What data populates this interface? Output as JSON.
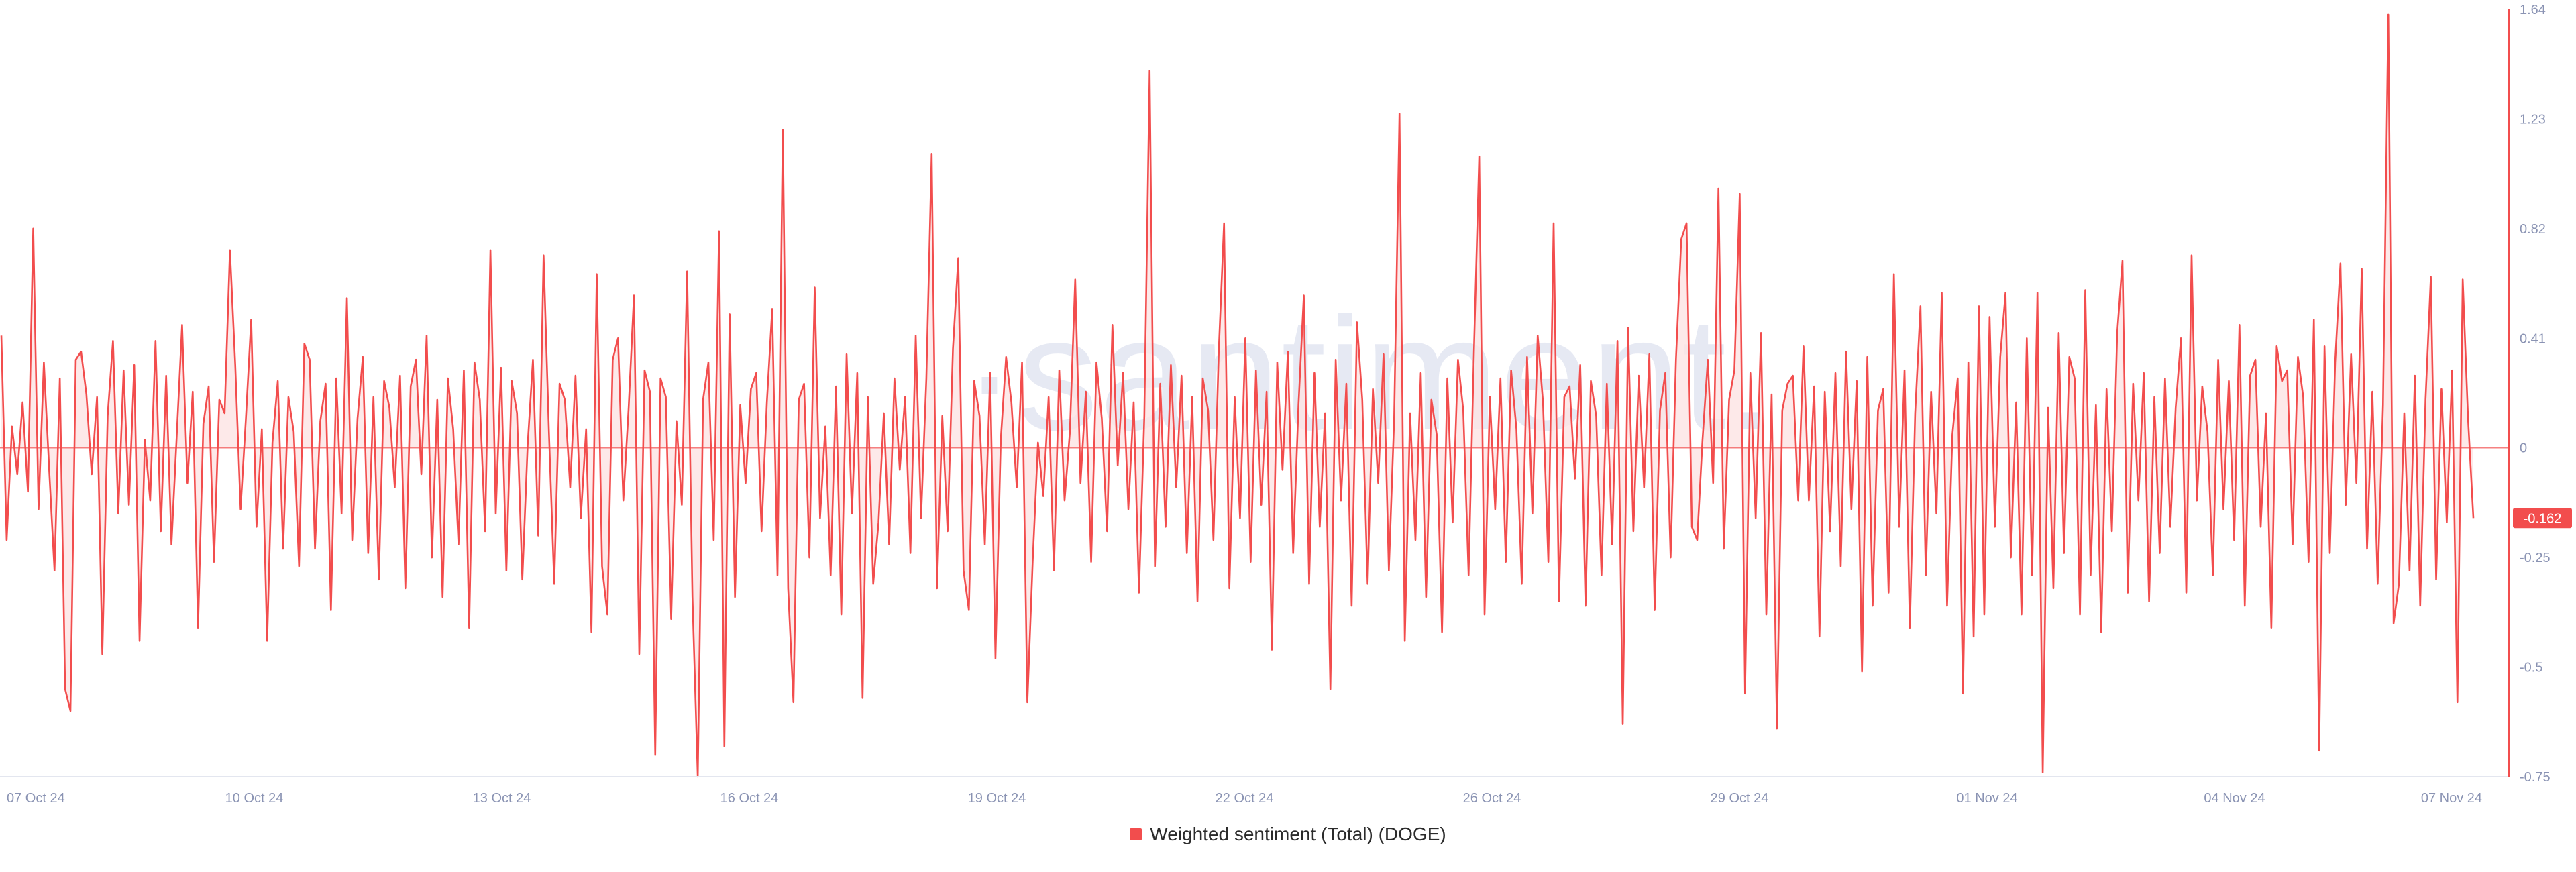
{
  "watermark": "·santiment.",
  "colors": {
    "line": "#f24d4d",
    "fill": "#fde3e3",
    "axis": "#f24d4d",
    "tick_text": "#8a93b3",
    "badge_bg": "#f24d4d"
  },
  "legend": {
    "label": "Weighted sentiment (Total) (DOGE)"
  },
  "last_value_badge": "-0.162",
  "chart_data": {
    "type": "area",
    "title": "",
    "xlabel": "",
    "ylabel": "",
    "ylim": [
      -0.75,
      1.64
    ],
    "y_ticks": [
      "1.64",
      "1.23",
      "0.82",
      "0.41",
      "0",
      "-0.25",
      "-0.5",
      "-0.75"
    ],
    "y_tick_values": [
      1.64,
      1.23,
      0.82,
      0.41,
      0,
      -0.25,
      -0.5,
      -0.75
    ],
    "x_ticks": [
      "07 Oct 24",
      "10 Oct 24",
      "13 Oct 24",
      "16 Oct 24",
      "19 Oct 24",
      "22 Oct 24",
      "26 Oct 24",
      "29 Oct 24",
      "01 Nov 24",
      "04 Nov 24",
      "07 Nov 24"
    ],
    "zero_line": 0,
    "series": [
      {
        "name": "Weighted sentiment (Total) (DOGE)",
        "values": [
          0.42,
          -0.21,
          0.08,
          -0.06,
          0.17,
          -0.1,
          0.82,
          -0.14,
          0.32,
          -0.05,
          -0.28,
          0.26,
          -0.55,
          -0.6,
          0.33,
          0.36,
          0.2,
          -0.06,
          0.19,
          -0.47,
          0.12,
          0.4,
          -0.15,
          0.29,
          -0.13,
          0.31,
          -0.44,
          0.03,
          -0.12,
          0.4,
          -0.19,
          0.27,
          -0.22,
          0.05,
          0.46,
          -0.08,
          0.21,
          -0.41,
          0.09,
          0.23,
          -0.26,
          0.18,
          0.13,
          0.74,
          0.31,
          -0.14,
          0.11,
          0.48,
          -0.18,
          0.07,
          -0.44,
          0.02,
          0.25,
          -0.23,
          0.19,
          0.06,
          -0.27,
          0.39,
          0.33,
          -0.23,
          0.1,
          0.24,
          -0.37,
          0.26,
          -0.15,
          0.56,
          -0.21,
          0.11,
          0.34,
          -0.24,
          0.19,
          -0.3,
          0.25,
          0.15,
          -0.09,
          0.27,
          -0.32,
          0.23,
          0.33,
          -0.06,
          0.42,
          -0.25,
          0.18,
          -0.34,
          0.26,
          0.07,
          -0.22,
          0.29,
          -0.41,
          0.32,
          0.18,
          -0.19,
          0.74,
          -0.15,
          0.3,
          -0.28,
          0.25,
          0.13,
          -0.3,
          0.01,
          0.33,
          -0.2,
          0.72,
          0.06,
          -0.31,
          0.24,
          0.18,
          -0.09,
          0.27,
          -0.16,
          0.07,
          -0.42,
          0.65,
          -0.27,
          -0.38,
          0.33,
          0.41,
          -0.12,
          0.15,
          0.57,
          -0.47,
          0.29,
          0.21,
          -0.7,
          0.26,
          0.19,
          -0.39,
          0.1,
          -0.13,
          0.66,
          -0.34,
          -0.75,
          0.18,
          0.32,
          -0.21,
          0.81,
          -0.68,
          0.5,
          -0.34,
          0.16,
          -0.08,
          0.22,
          0.28,
          -0.19,
          0.17,
          0.52,
          -0.29,
          1.19,
          -0.32,
          -0.58,
          0.18,
          0.24,
          -0.25,
          0.6,
          -0.16,
          0.08,
          -0.29,
          0.23,
          -0.38,
          0.35,
          -0.15,
          0.28,
          -0.57,
          0.19,
          -0.31,
          -0.17,
          0.13,
          -0.22,
          0.26,
          -0.05,
          0.19,
          -0.24,
          0.42,
          -0.16,
          0.26,
          1.1,
          -0.32,
          0.12,
          -0.19,
          0.37,
          0.71,
          -0.28,
          -0.37,
          0.25,
          0.12,
          -0.22,
          0.28,
          -0.48,
          0.03,
          0.34,
          0.17,
          -0.09,
          0.32,
          -0.58,
          -0.26,
          0.02,
          -0.11,
          0.19,
          -0.28,
          0.29,
          -0.12,
          0.06,
          0.63,
          -0.08,
          0.21,
          -0.26,
          0.32,
          0.11,
          -0.19,
          0.46,
          -0.04,
          0.28,
          -0.14,
          0.17,
          -0.33,
          0.12,
          1.41,
          -0.27,
          0.24,
          -0.18,
          0.31,
          -0.09,
          0.27,
          -0.24,
          0.19,
          -0.35,
          0.26,
          0.14,
          -0.21,
          0.36,
          0.84,
          -0.32,
          0.19,
          -0.16,
          0.41,
          -0.26,
          0.29,
          -0.13,
          0.21,
          -0.46,
          0.32,
          -0.05,
          0.36,
          -0.24,
          0.16,
          0.57,
          -0.31,
          0.28,
          -0.18,
          0.13,
          -0.55,
          0.33,
          -0.12,
          0.24,
          -0.36,
          0.47,
          0.18,
          -0.31,
          0.22,
          -0.08,
          0.35,
          -0.28,
          0.11,
          1.25,
          -0.44,
          0.13,
          -0.21,
          0.28,
          -0.34,
          0.18,
          0.05,
          -0.42,
          0.26,
          -0.17,
          0.33,
          0.14,
          -0.29,
          0.36,
          1.09,
          -0.38,
          0.19,
          -0.14,
          0.26,
          -0.26,
          0.29,
          0.07,
          -0.31,
          0.34,
          -0.15,
          0.42,
          0.17,
          -0.26,
          0.84,
          -0.35,
          0.19,
          0.23,
          -0.07,
          0.31,
          -0.36,
          0.25,
          0.12,
          -0.29,
          0.24,
          -0.22,
          0.4,
          -0.63,
          0.45,
          -0.19,
          0.27,
          -0.09,
          0.35,
          -0.37,
          0.14,
          0.28,
          -0.25,
          0.33,
          0.78,
          0.84,
          -0.18,
          -0.21,
          0.03,
          0.33,
          -0.08,
          0.97,
          -0.23,
          0.18,
          0.29,
          0.95,
          -0.56,
          0.28,
          -0.16,
          0.43,
          -0.38,
          0.2,
          -0.64,
          0.14,
          0.24,
          0.27,
          -0.12,
          0.38,
          -0.12,
          0.23,
          -0.43,
          0.21,
          -0.19,
          0.28,
          -0.27,
          0.36,
          -0.14,
          0.25,
          -0.51,
          0.34,
          -0.36,
          0.14,
          0.22,
          -0.33,
          0.65,
          -0.18,
          0.29,
          -0.41,
          0.13,
          0.53,
          -0.29,
          0.21,
          -0.15,
          0.58,
          -0.36,
          0.05,
          0.26,
          -0.56,
          0.32,
          -0.43,
          0.53,
          -0.38,
          0.49,
          -0.18,
          0.34,
          0.58,
          -0.25,
          0.17,
          -0.38,
          0.41,
          -0.29,
          0.58,
          -0.74,
          0.15,
          -0.32,
          0.43,
          -0.24,
          0.34,
          0.26,
          -0.38,
          0.59,
          -0.29,
          0.16,
          -0.42,
          0.22,
          -0.19,
          0.43,
          0.7,
          -0.33,
          0.24,
          -0.12,
          0.28,
          -0.35,
          0.19,
          -0.24,
          0.26,
          -0.18,
          0.15,
          0.41,
          -0.33,
          0.72,
          -0.12,
          0.23,
          0.06,
          -0.29,
          0.33,
          -0.14,
          0.25,
          -0.21,
          0.46,
          -0.36,
          0.27,
          0.33,
          -0.18,
          0.13,
          -0.41,
          0.38,
          0.25,
          0.29,
          -0.22,
          0.34,
          0.19,
          -0.26,
          0.48,
          -0.69,
          0.38,
          -0.24,
          0.32,
          0.69,
          -0.13,
          0.35,
          -0.08,
          0.67,
          -0.23,
          0.21,
          -0.31,
          0.16,
          1.62,
          -0.4,
          -0.31,
          0.13,
          -0.28,
          0.27,
          -0.36,
          0.18,
          0.64,
          -0.3,
          0.22,
          -0.17,
          0.29,
          -0.58,
          0.63,
          0.11,
          -0.16
        ]
      }
    ]
  }
}
